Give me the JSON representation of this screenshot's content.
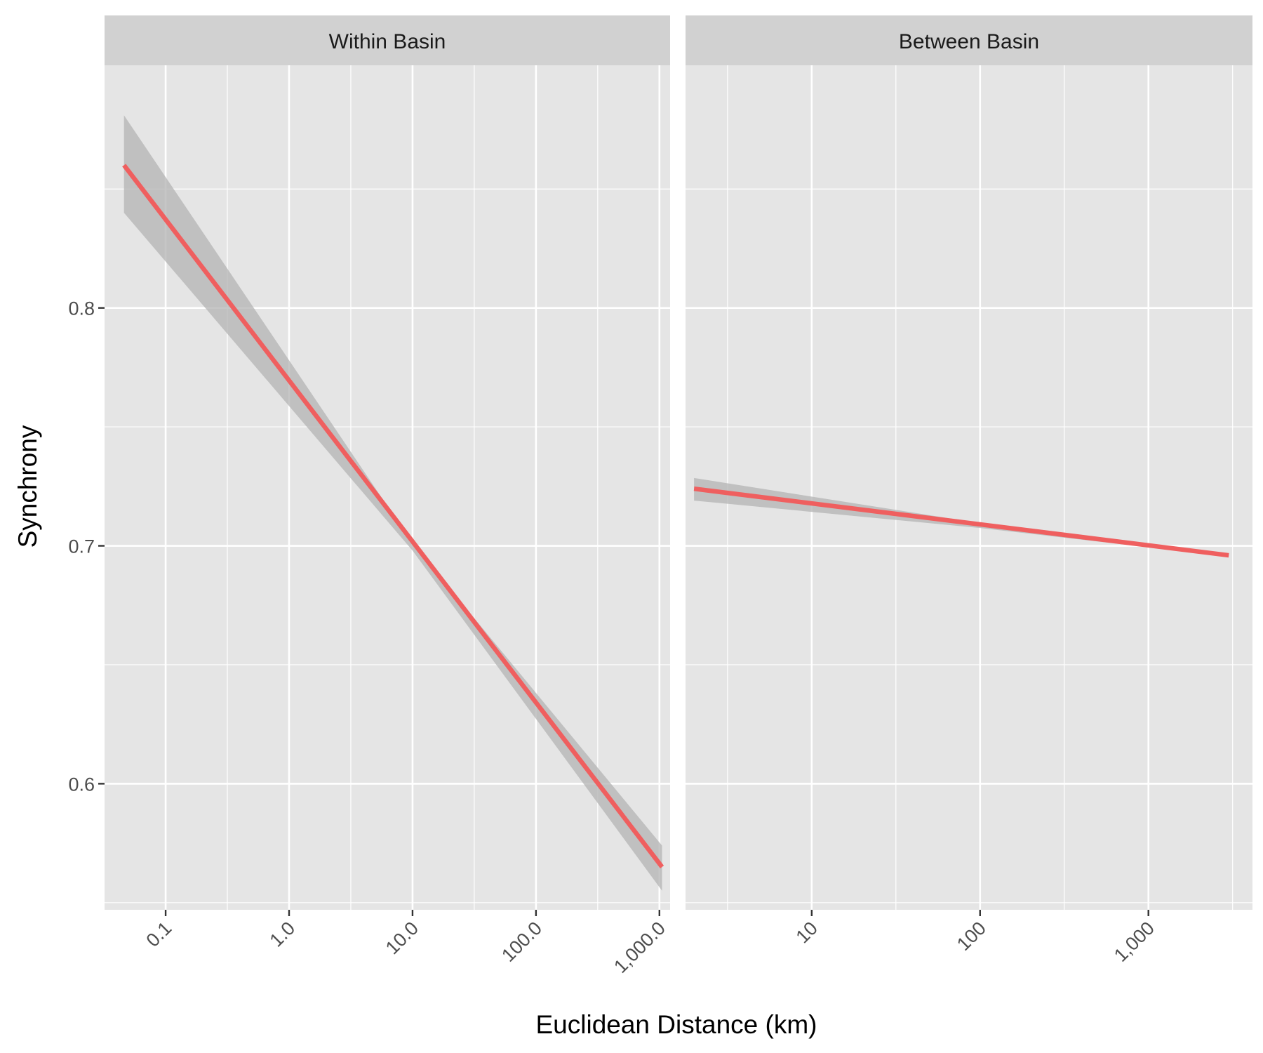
{
  "chart_data": {
    "type": "line",
    "xlabel": "Euclidean Distance (km)",
    "ylabel": "Synchrony",
    "x_scale": "log10",
    "y_ticks": [
      {
        "value": 0.6,
        "label": "0.6"
      },
      {
        "value": 0.7,
        "label": "0.7"
      },
      {
        "value": 0.8,
        "label": "0.8"
      }
    ],
    "ylim": [
      0.547,
      0.902
    ],
    "grid": true,
    "colors": {
      "panel_bg": "#e5e5e5",
      "strip_bg": "#d1d1d1",
      "grid": "#ffffff",
      "line": "#ef5f5f",
      "ribbon": "#b3b3b3"
    },
    "panels": [
      {
        "label": "Within Basin",
        "xlim": [
          0.032,
          1220
        ],
        "x_ticks": [
          {
            "value": 0.1,
            "label": "0.1"
          },
          {
            "value": 1,
            "label": "1.0"
          },
          {
            "value": 10,
            "label": "10.0"
          },
          {
            "value": 100,
            "label": "100.0"
          },
          {
            "value": 1000,
            "label": "1,000.0"
          }
        ],
        "line": {
          "x": [
            0.046,
            1050
          ],
          "y": [
            0.86,
            0.565
          ]
        },
        "ribbon": {
          "x": [
            0.046,
            10,
            1050
          ],
          "lower": [
            0.84,
            0.698,
            0.555
          ],
          "upper": [
            0.881,
            0.701,
            0.574
          ]
        }
      },
      {
        "label": "Between Basin",
        "xlim": [
          1.78,
          4150
        ],
        "x_ticks": [
          {
            "value": 10,
            "label": "10"
          },
          {
            "value": 100,
            "label": "100"
          },
          {
            "value": 1000,
            "label": "1,000"
          }
        ],
        "line": {
          "x": [
            2.0,
            3000
          ],
          "y": [
            0.724,
            0.696
          ]
        },
        "ribbon": {
          "x": [
            2.0,
            100,
            3000
          ],
          "lower": [
            0.719,
            0.7075,
            0.6955
          ],
          "upper": [
            0.7285,
            0.7095,
            0.6965
          ]
        }
      }
    ]
  }
}
